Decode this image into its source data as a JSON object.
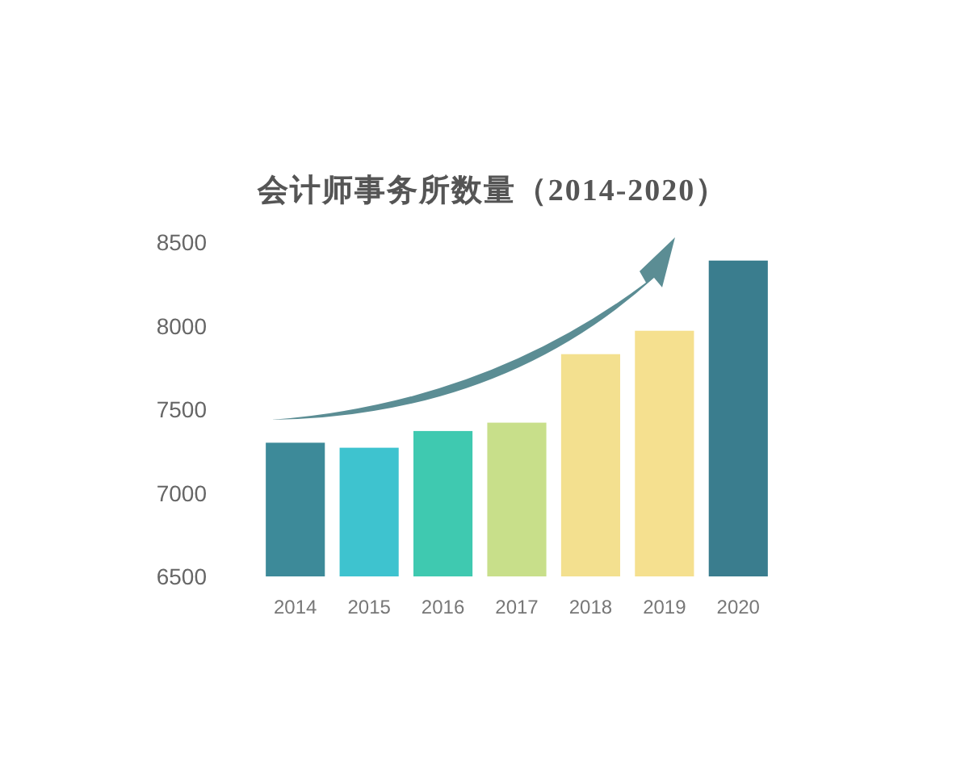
{
  "chart_data": {
    "type": "bar",
    "title": "会计师事务所数量（2014-2020）",
    "categories": [
      "2014",
      "2015",
      "2016",
      "2017",
      "2018",
      "2019",
      "2020"
    ],
    "values": [
      7300,
      7270,
      7370,
      7420,
      7830,
      7970,
      8390
    ],
    "colors": [
      "#3d8a99",
      "#3ec3cf",
      "#3fc9b0",
      "#c8df8a",
      "#f3e08f",
      "#f5e08f",
      "#3a7d8e"
    ],
    "ylim": [
      6500,
      8500
    ],
    "yticks": [
      6500,
      7000,
      7500,
      8000,
      8500
    ],
    "grid": false
  }
}
